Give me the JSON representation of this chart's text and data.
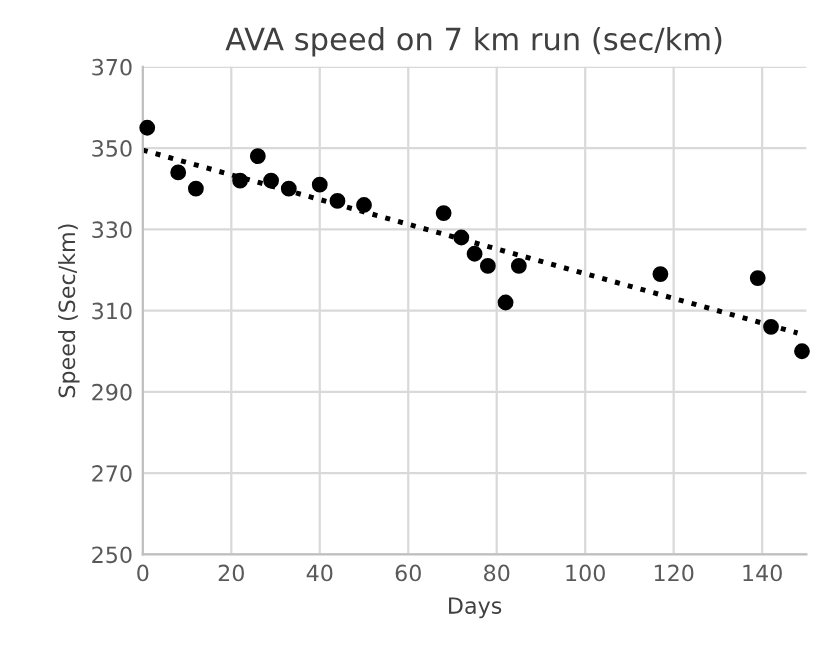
{
  "chart_data": {
    "type": "scatter",
    "title": "AVA speed on 7 km run (sec/km)",
    "xlabel": "Days",
    "ylabel": "Speed (Sec/km)",
    "series": [
      {
        "color": "#000000",
        "marker": "circle",
        "x": [
          1,
          8,
          12,
          22,
          26,
          29,
          33,
          40,
          44,
          50,
          68,
          72,
          75,
          78,
          82,
          85,
          117,
          139,
          142,
          149
        ],
        "values": [
          355,
          344,
          340,
          342,
          348,
          342,
          340,
          341,
          337,
          336,
          334,
          328,
          324,
          321,
          312,
          321,
          319,
          318,
          306,
          300
        ]
      },
      {
        "type": "line",
        "color": "#000000",
        "line_style": "dotted",
        "marker": "none",
        "x": [
          0,
          148
        ],
        "values": [
          349.5,
          304.5
        ]
      }
    ],
    "xlim": [
      0,
      150
    ],
    "xticks": [
      0,
      20,
      40,
      60,
      80,
      100,
      120,
      140
    ],
    "ylim": [
      250,
      370
    ],
    "yticks": [
      250,
      270,
      290,
      310,
      330,
      350,
      370
    ],
    "grid": true
  }
}
